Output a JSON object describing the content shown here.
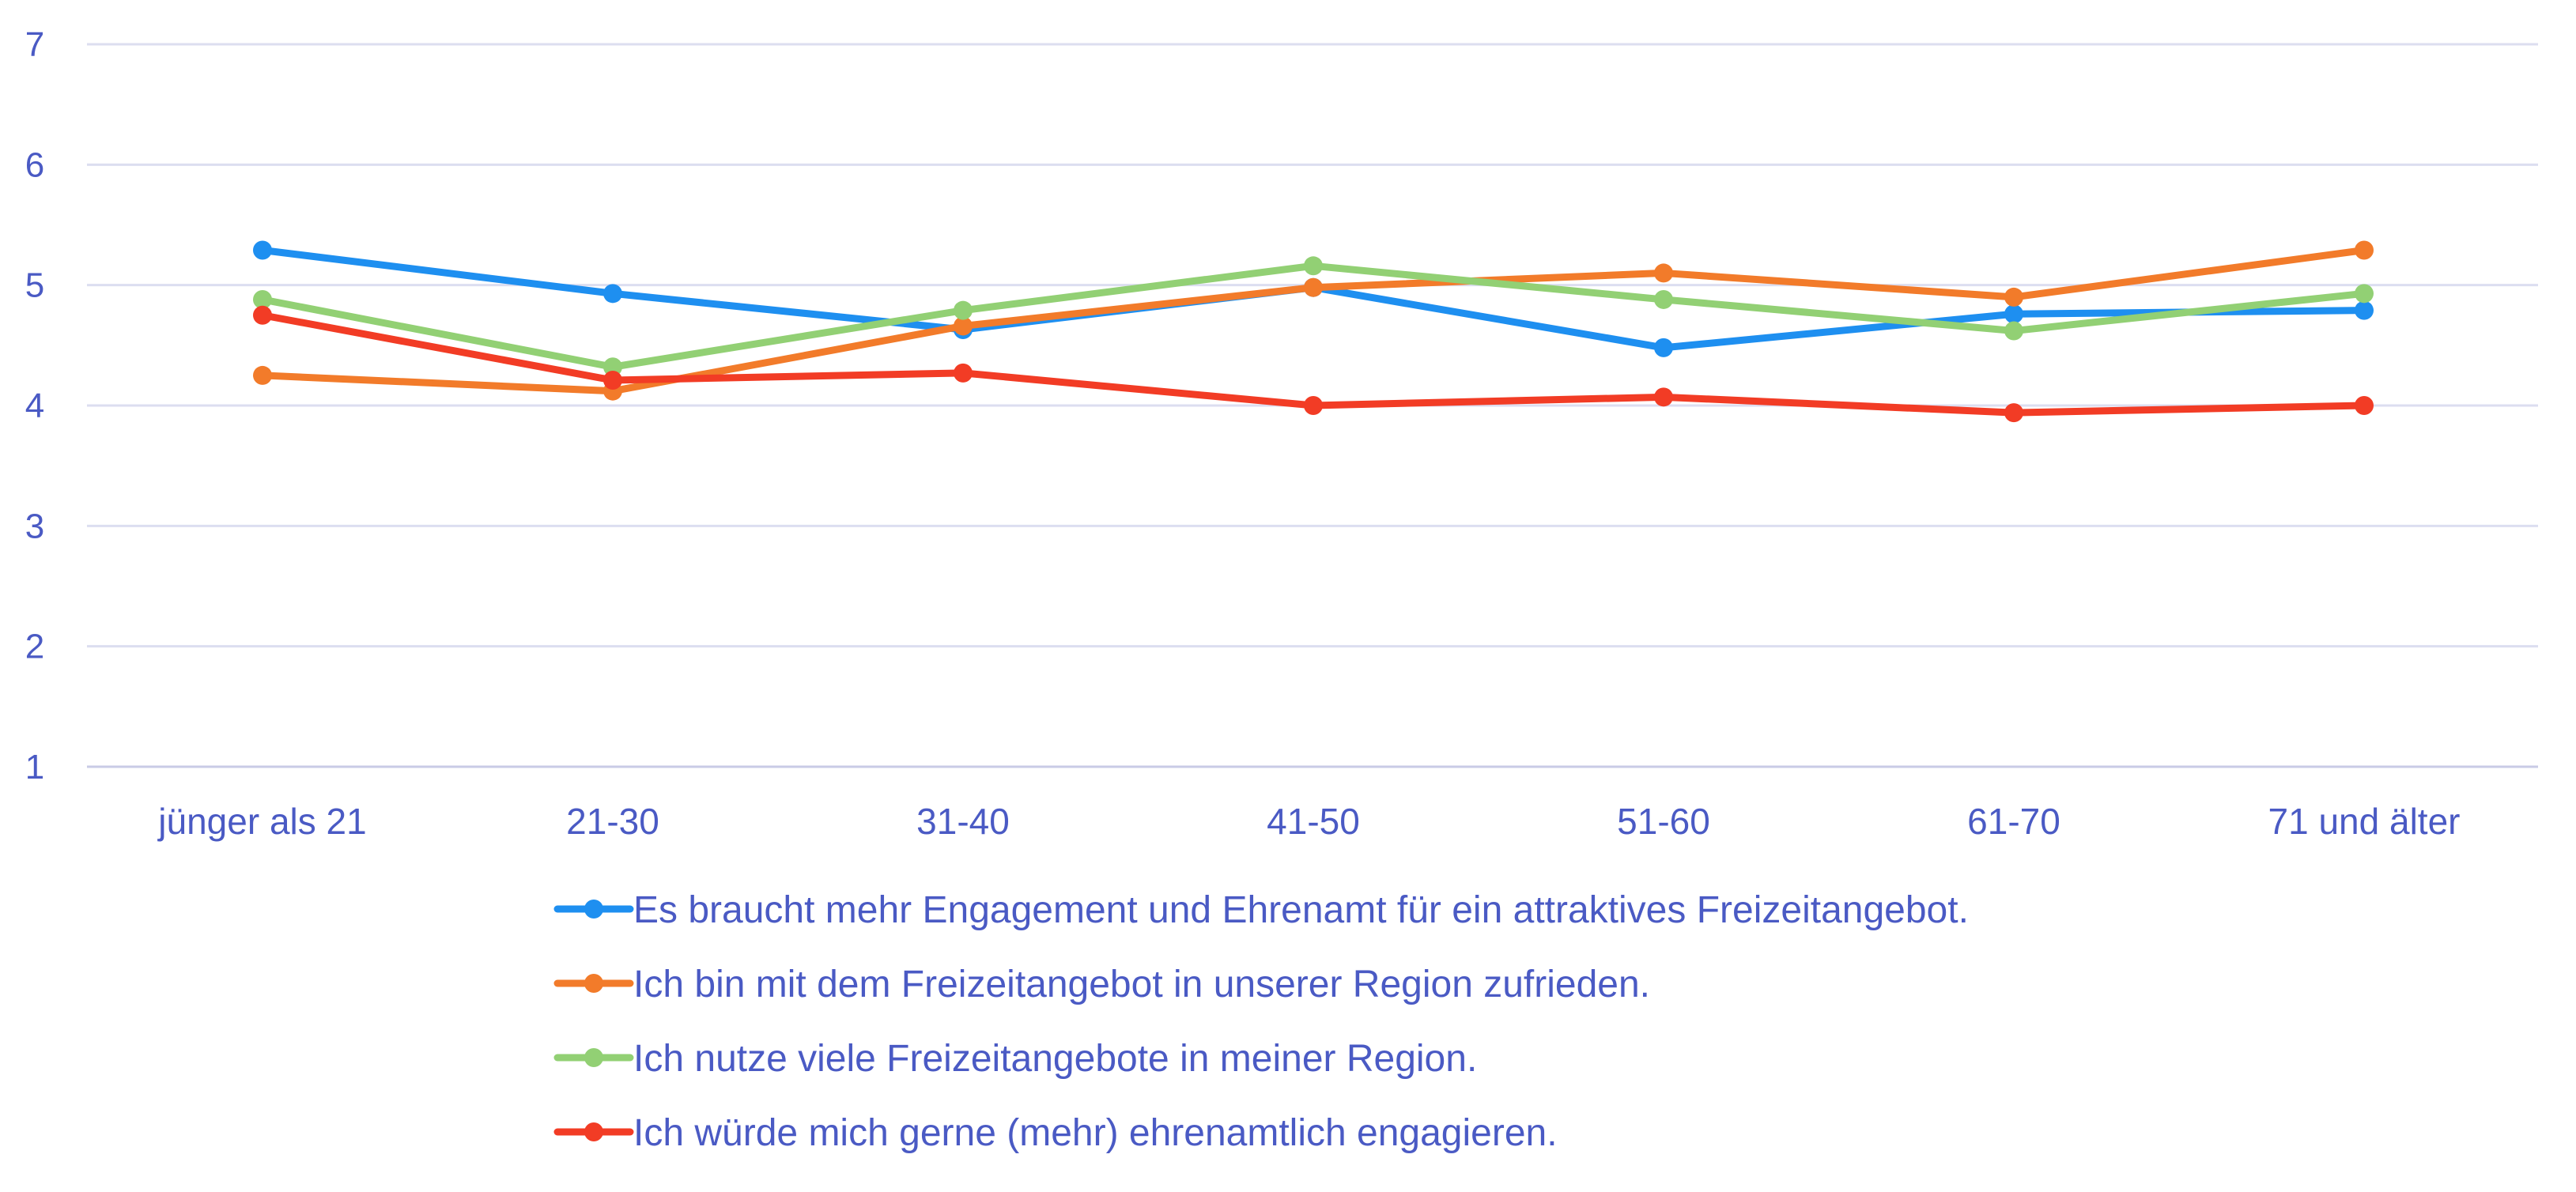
{
  "chart_data": {
    "type": "line",
    "categories": [
      "jünger als 21",
      "21-30",
      "31-40",
      "41-50",
      "51-60",
      "61-70",
      "71 und älter"
    ],
    "ylim": [
      1,
      7
    ],
    "yticks": [
      "1",
      "2",
      "3",
      "4",
      "5",
      "6",
      "7"
    ],
    "grid": true,
    "legend_position": "bottom",
    "series": [
      {
        "name": "Es braucht mehr Engagement und Ehrenamt für ein attraktives Freizeitangebot.",
        "color": "#1e8ff0",
        "values": [
          5.29,
          4.93,
          4.63,
          4.98,
          4.48,
          4.76,
          4.79
        ]
      },
      {
        "name": "Ich bin mit dem Freizeitangebot in unserer Region zufrieden.",
        "color": "#f27b2a",
        "values": [
          4.25,
          4.12,
          4.66,
          4.98,
          5.1,
          4.9,
          5.29
        ]
      },
      {
        "name": "Ich nutze viele Freizeitangebote in meiner Region.",
        "color": "#92d074",
        "values": [
          4.88,
          4.32,
          4.79,
          5.16,
          4.88,
          4.62,
          4.93
        ]
      },
      {
        "name": "Ich würde mich gerne (mehr) ehrenamtlich engagieren.",
        "color": "#f23c25",
        "values": [
          4.75,
          4.21,
          4.27,
          4.0,
          4.07,
          3.94,
          4.0
        ]
      }
    ]
  }
}
